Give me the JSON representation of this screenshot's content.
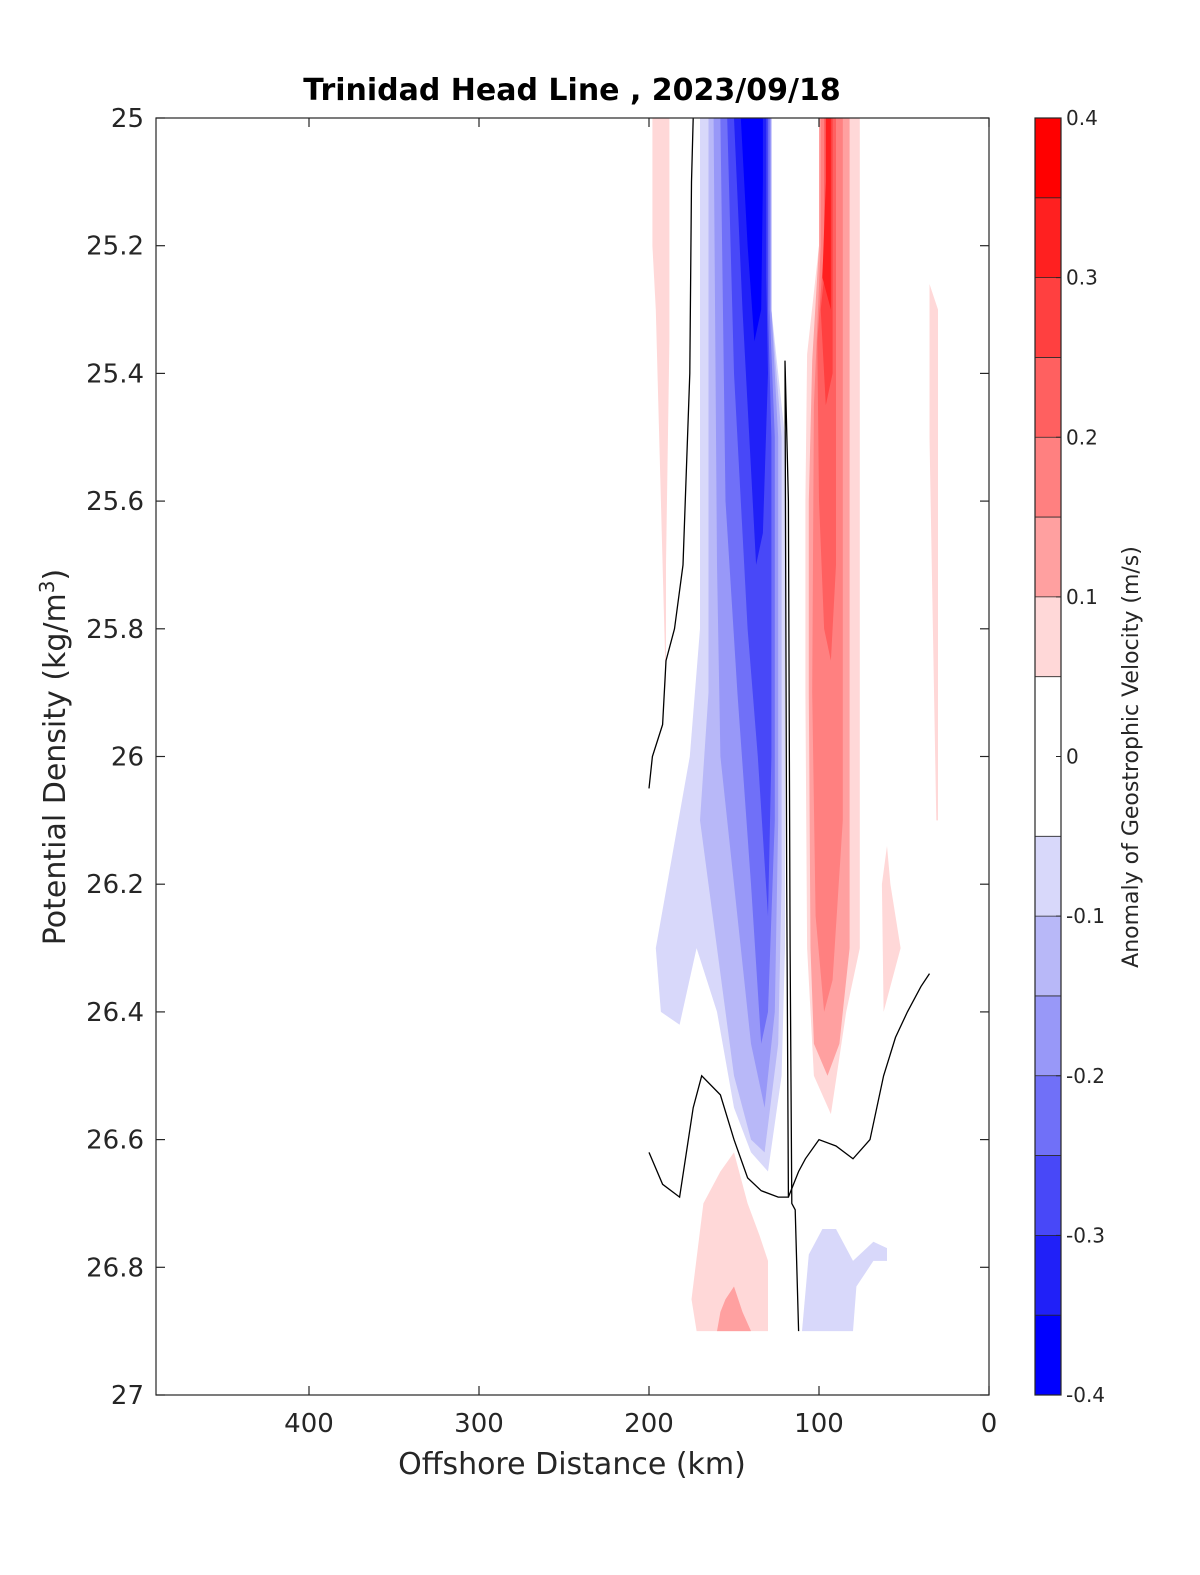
{
  "chart_data": {
    "type": "contour",
    "title": "Trinidad Head Line , 2023/09/18",
    "xlabel": "Offshore Distance (km)",
    "ylabel": "Potential Density (kg/m",
    "ylabel_sup": "3",
    "ylabel_end": ")",
    "xlim": [
      490,
      0
    ],
    "ylim": [
      25,
      27
    ],
    "xticks": [
      {
        "value": 400,
        "label": "400"
      },
      {
        "value": 300,
        "label": "300"
      },
      {
        "value": 200,
        "label": "200"
      },
      {
        "value": 100,
        "label": "100"
      },
      {
        "value": 0,
        "label": "0"
      }
    ],
    "yticks": [
      {
        "value": 25.0,
        "label": "25"
      },
      {
        "value": 25.2,
        "label": "25.2"
      },
      {
        "value": 25.4,
        "label": "25.4"
      },
      {
        "value": 25.6,
        "label": "25.6"
      },
      {
        "value": 25.8,
        "label": "25.8"
      },
      {
        "value": 26.0,
        "label": "26"
      },
      {
        "value": 26.2,
        "label": "26.2"
      },
      {
        "value": 26.4,
        "label": "26.4"
      },
      {
        "value": 26.6,
        "label": "26.6"
      },
      {
        "value": 26.8,
        "label": "26.8"
      },
      {
        "value": 27.0,
        "label": "27"
      }
    ],
    "colorbar": {
      "label": "Anomaly of Geostrophic Velocity (m/s)",
      "range": [
        -0.4,
        0.4
      ],
      "ticks": [
        {
          "value": 0.4,
          "label": "0.4"
        },
        {
          "value": 0.3,
          "label": "0.3"
        },
        {
          "value": 0.2,
          "label": "0.2"
        },
        {
          "value": 0.1,
          "label": "0.1"
        },
        {
          "value": 0.0,
          "label": "0"
        },
        {
          "value": -0.1,
          "label": "-0.1"
        },
        {
          "value": -0.2,
          "label": "-0.2"
        },
        {
          "value": -0.3,
          "label": "-0.3"
        },
        {
          "value": -0.4,
          "label": "-0.4"
        }
      ],
      "bands": [
        {
          "from": 0.35,
          "to": 0.4,
          "color": "#ff0000"
        },
        {
          "from": 0.3,
          "to": 0.35,
          "color": "#ff2020"
        },
        {
          "from": 0.25,
          "to": 0.3,
          "color": "#ff4040"
        },
        {
          "from": 0.2,
          "to": 0.25,
          "color": "#ff6060"
        },
        {
          "from": 0.15,
          "to": 0.2,
          "color": "#ff8080"
        },
        {
          "from": 0.1,
          "to": 0.15,
          "color": "#ffa0a0"
        },
        {
          "from": 0.05,
          "to": 0.1,
          "color": "#ffd8d8"
        },
        {
          "from": -0.05,
          "to": 0.05,
          "color": "#ffffff"
        },
        {
          "from": -0.1,
          "to": -0.05,
          "color": "#d8d8fa"
        },
        {
          "from": -0.15,
          "to": -0.1,
          "color": "#b8b8f8"
        },
        {
          "from": -0.2,
          "to": -0.15,
          "color": "#9898f8"
        },
        {
          "from": -0.25,
          "to": -0.2,
          "color": "#7070f8"
        },
        {
          "from": -0.3,
          "to": -0.25,
          "color": "#4848f8"
        },
        {
          "from": -0.35,
          "to": -0.3,
          "color": "#2020f8"
        },
        {
          "from": -0.4,
          "to": -0.35,
          "color": "#0000ff"
        }
      ]
    },
    "regions": [
      {
        "value": 0.07,
        "points": [
          [
            198,
            25
          ],
          [
            188,
            25
          ],
          [
            188,
            25.35
          ],
          [
            190,
            25.7
          ],
          [
            190,
            25.9
          ],
          [
            193,
            25.6
          ],
          [
            196,
            25.3
          ],
          [
            198,
            25.2
          ]
        ]
      },
      {
        "value": 0.07,
        "points": [
          [
            35,
            25.26
          ],
          [
            30,
            25.3
          ],
          [
            30,
            26.1
          ],
          [
            31,
            26.1
          ],
          [
            33,
            25.8
          ],
          [
            35,
            25.5
          ]
        ]
      },
      {
        "value": 0.07,
        "points": [
          [
            60,
            26.14
          ],
          [
            58,
            26.2
          ],
          [
            52,
            26.3
          ],
          [
            57,
            26.35
          ],
          [
            62,
            26.4
          ],
          [
            63,
            26.2
          ]
        ]
      },
      {
        "value": 0.07,
        "points": [
          [
            107,
            25.37
          ],
          [
            100,
            25.2
          ],
          [
            100,
            25
          ],
          [
            76,
            25
          ],
          [
            76,
            26.3
          ],
          [
            84,
            26.4
          ],
          [
            93,
            26.56
          ],
          [
            103,
            26.5
          ],
          [
            107,
            26.3
          ],
          [
            108,
            25.9
          ],
          [
            108,
            25.6
          ]
        ]
      },
      {
        "value": 0.12,
        "points": [
          [
            104,
            25.38
          ],
          [
            100,
            25.2
          ],
          [
            100,
            25
          ],
          [
            82,
            25
          ],
          [
            82,
            26.3
          ],
          [
            88,
            26.45
          ],
          [
            95,
            26.5
          ],
          [
            103,
            26.45
          ],
          [
            105,
            26.3
          ],
          [
            106,
            25.9
          ],
          [
            106,
            25.6
          ]
        ]
      },
      {
        "value": 0.17,
        "points": [
          [
            103,
            25.45
          ],
          [
            99,
            25.2
          ],
          [
            99,
            25
          ],
          [
            86,
            25
          ],
          [
            86,
            26.1
          ],
          [
            92,
            26.35
          ],
          [
            97,
            26.4
          ],
          [
            102,
            26.25
          ],
          [
            104,
            25.9
          ]
        ]
      },
      {
        "value": 0.22,
        "points": [
          [
            101,
            25.35
          ],
          [
            97,
            25.2
          ],
          [
            97,
            25
          ],
          [
            90,
            25
          ],
          [
            90,
            25.7
          ],
          [
            93,
            25.85
          ],
          [
            97,
            25.8
          ],
          [
            100,
            25.6
          ]
        ]
      },
      {
        "value": 0.27,
        "points": [
          [
            99,
            25.3
          ],
          [
            95,
            25.2
          ],
          [
            95,
            25
          ],
          [
            92,
            25
          ],
          [
            92,
            25.4
          ],
          [
            96,
            25.45
          ]
        ]
      },
      {
        "value": 0.32,
        "points": [
          [
            98,
            25.25
          ],
          [
            96,
            25.1
          ],
          [
            96,
            25
          ],
          [
            93,
            25
          ],
          [
            93,
            25.3
          ]
        ]
      },
      {
        "value": -0.07,
        "points": [
          [
            170,
            25
          ],
          [
            170,
            25.8
          ],
          [
            176,
            26.0
          ],
          [
            186,
            26.15
          ],
          [
            196,
            26.3
          ],
          [
            193,
            26.4
          ],
          [
            182,
            26.42
          ],
          [
            172,
            26.3
          ],
          [
            160,
            26.4
          ],
          [
            150,
            26.55
          ],
          [
            140,
            26.62
          ],
          [
            130,
            26.65
          ],
          [
            122,
            26.5
          ],
          [
            120,
            26.3
          ],
          [
            120,
            25.5
          ],
          [
            128,
            25.3
          ],
          [
            128,
            25
          ]
        ]
      },
      {
        "value": -0.12,
        "points": [
          [
            165,
            25
          ],
          [
            165,
            25.9
          ],
          [
            170,
            26.1
          ],
          [
            160,
            26.3
          ],
          [
            150,
            26.5
          ],
          [
            140,
            26.6
          ],
          [
            132,
            26.62
          ],
          [
            124,
            26.45
          ],
          [
            122,
            26.2
          ],
          [
            122,
            25.5
          ],
          [
            128,
            25.3
          ],
          [
            128,
            25
          ]
        ]
      },
      {
        "value": -0.17,
        "points": [
          [
            162,
            25
          ],
          [
            160,
            25.7
          ],
          [
            158,
            26.0
          ],
          [
            150,
            26.2
          ],
          [
            140,
            26.45
          ],
          [
            132,
            26.55
          ],
          [
            126,
            26.4
          ],
          [
            124,
            26.1
          ],
          [
            124,
            25.5
          ],
          [
            128,
            25.3
          ],
          [
            128,
            25
          ]
        ]
      },
      {
        "value": -0.22,
        "points": [
          [
            158,
            25
          ],
          [
            155,
            25.6
          ],
          [
            148,
            25.9
          ],
          [
            140,
            26.2
          ],
          [
            134,
            26.45
          ],
          [
            130,
            26.4
          ],
          [
            126,
            26.1
          ],
          [
            126,
            25.5
          ],
          [
            129,
            25.3
          ],
          [
            129,
            25
          ]
        ]
      },
      {
        "value": -0.27,
        "points": [
          [
            154,
            25
          ],
          [
            150,
            25.4
          ],
          [
            142,
            25.8
          ],
          [
            136,
            26.0
          ],
          [
            130,
            26.25
          ],
          [
            128,
            26.0
          ],
          [
            128,
            25.5
          ],
          [
            130,
            25.3
          ],
          [
            130,
            25
          ]
        ]
      },
      {
        "value": -0.32,
        "points": [
          [
            150,
            25
          ],
          [
            145,
            25.3
          ],
          [
            140,
            25.55
          ],
          [
            137,
            25.7
          ],
          [
            133,
            25.65
          ],
          [
            130,
            25.4
          ],
          [
            131,
            25.25
          ],
          [
            131,
            25
          ]
        ]
      },
      {
        "value": -0.37,
        "points": [
          [
            146,
            25
          ],
          [
            142,
            25.2
          ],
          [
            138,
            25.35
          ],
          [
            134,
            25.3
          ],
          [
            133,
            25.1
          ],
          [
            133,
            25
          ]
        ]
      },
      {
        "value": 0.07,
        "points": [
          [
            142,
            26.7
          ],
          [
            135,
            26.75
          ],
          [
            130,
            26.79
          ],
          [
            130,
            26.9
          ],
          [
            172,
            26.9
          ],
          [
            175,
            26.85
          ],
          [
            168,
            26.7
          ],
          [
            158,
            26.65
          ],
          [
            150,
            26.62
          ]
        ]
      },
      {
        "value": 0.12,
        "points": [
          [
            150,
            26.83
          ],
          [
            145,
            26.87
          ],
          [
            140,
            26.9
          ],
          [
            160,
            26.9
          ],
          [
            158,
            26.87
          ],
          [
            155,
            26.85
          ]
        ]
      },
      {
        "value": -0.07,
        "points": [
          [
            98,
            26.74
          ],
          [
            106,
            26.78
          ],
          [
            110,
            26.9
          ],
          [
            80,
            26.9
          ],
          [
            78,
            26.83
          ],
          [
            68,
            26.79
          ],
          [
            60,
            26.79
          ],
          [
            60,
            26.77
          ],
          [
            68,
            26.76
          ],
          [
            80,
            26.79
          ],
          [
            90,
            26.74
          ]
        ]
      }
    ],
    "zero_contours": [
      [
        [
          200,
          26.05
        ],
        [
          198,
          26.0
        ],
        [
          192,
          25.95
        ],
        [
          190,
          25.85
        ],
        [
          185,
          25.8
        ],
        [
          180,
          25.7
        ],
        [
          176,
          25.4
        ],
        [
          175,
          25.1
        ],
        [
          174,
          25
        ]
      ],
      [
        [
          200,
          26.62
        ],
        [
          192,
          26.67
        ],
        [
          182,
          26.69
        ],
        [
          174,
          26.55
        ],
        [
          169,
          26.5
        ],
        [
          158,
          26.53
        ],
        [
          150,
          26.6
        ],
        [
          142,
          26.66
        ],
        [
          134,
          26.68
        ],
        [
          124,
          26.69
        ],
        [
          118,
          26.69
        ],
        [
          119,
          26.2
        ],
        [
          120,
          25.38
        ],
        [
          118,
          25.6
        ],
        [
          117,
          26.3
        ],
        [
          116,
          26.7
        ],
        [
          114,
          26.71
        ],
        [
          112,
          26.9
        ]
      ],
      [
        [
          118,
          26.69
        ],
        [
          112,
          26.65
        ],
        [
          108,
          26.63
        ],
        [
          100,
          26.6
        ],
        [
          90,
          26.61
        ],
        [
          80,
          26.63
        ],
        [
          70,
          26.6
        ],
        [
          62,
          26.5
        ],
        [
          55,
          26.44
        ],
        [
          48,
          26.4
        ],
        [
          40,
          26.36
        ],
        [
          35,
          26.34
        ]
      ]
    ]
  }
}
